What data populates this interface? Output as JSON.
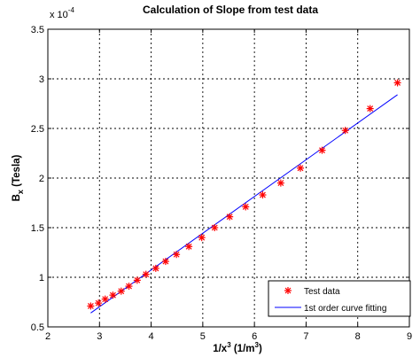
{
  "chart_data": {
    "type": "scatter",
    "title": "Calculation of Slope from test data",
    "xlabel": "1/x³ (1/m³)",
    "ylabel": "Bₓ (Tesla)",
    "xlabel_parts": {
      "main": "1/x",
      "sup1": "3",
      "mid": " (1/m",
      "sup2": "3",
      "end": ")"
    },
    "ylabel_parts": {
      "main": "B",
      "sub": "x",
      "end": " (Tesla)"
    },
    "y_multiplier": {
      "base": "x 10",
      "exp": "-4"
    },
    "xlim": [
      2,
      9
    ],
    "ylim": [
      0.5,
      3.5
    ],
    "x_ticks": [
      "2",
      "3",
      "4",
      "5",
      "6",
      "7",
      "8",
      "9"
    ],
    "y_ticks": [
      "0.5",
      "1",
      "1.5",
      "2",
      "2.5",
      "3",
      "3.5"
    ],
    "grid": true,
    "legend_position": "bottom-right",
    "series": [
      {
        "name": "Test data",
        "kind": "markers",
        "marker": "asterisk",
        "color": "#ff0000",
        "x": [
          2.83,
          2.98,
          3.11,
          3.26,
          3.42,
          3.57,
          3.73,
          3.9,
          4.09,
          4.28,
          4.49,
          4.73,
          4.98,
          5.23,
          5.52,
          5.83,
          6.16,
          6.51,
          6.89,
          7.31,
          7.76,
          8.24,
          8.77
        ],
        "y": [
          0.71,
          0.74,
          0.78,
          0.82,
          0.86,
          0.91,
          0.97,
          1.03,
          1.09,
          1.16,
          1.23,
          1.31,
          1.4,
          1.5,
          1.61,
          1.71,
          1.83,
          1.95,
          2.1,
          2.28,
          2.48,
          2.7,
          2.96
        ]
      },
      {
        "name": "1st order curve fitting",
        "kind": "line",
        "color": "#0000ff",
        "x": [
          2.83,
          8.77
        ],
        "y": [
          0.64,
          2.84
        ]
      }
    ]
  }
}
